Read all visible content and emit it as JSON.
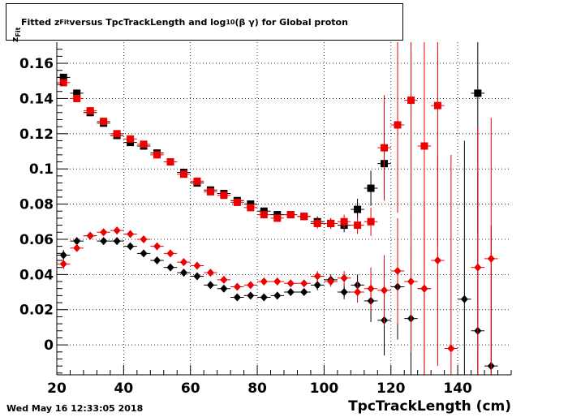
{
  "title": {
    "prefix": "Fitted  z",
    "sub": "Fit",
    "middle": "  versus TpcTrackLength and log",
    "log_sub": "10",
    "suffix": " (β γ) for Global proton"
  },
  "ylabel": {
    "main": "z",
    "sub": "Fit"
  },
  "datestamp": "Wed May 16 12:33:05 2018",
  "chart_data": {
    "type": "scatter",
    "title": "Fitted z_Fit versus TpcTrackLength and log10 (β γ) for Global proton",
    "xlabel": "TpcTrackLength (cm)",
    "ylabel": "z_Fit",
    "xlim": [
      20,
      156
    ],
    "ylim": [
      -0.017,
      0.172
    ],
    "xticks": [
      20,
      40,
      60,
      80,
      100,
      120,
      140
    ],
    "yticks": [
      0,
      0.02,
      0.04,
      0.06,
      0.08,
      0.1,
      0.12,
      0.14,
      0.16
    ],
    "ytick_labels": [
      "0",
      "0.02",
      "0.04",
      "0.06",
      "0.08",
      "0.1",
      "0.12",
      "0.14",
      "0.16"
    ],
    "grid": true,
    "series": [
      {
        "marker": "square",
        "color": "#000000",
        "x": [
          22,
          26,
          30,
          34,
          38,
          42,
          46,
          50,
          54,
          58,
          62,
          66,
          70,
          74,
          78,
          82,
          86,
          90,
          94,
          98,
          102,
          106,
          110,
          114,
          118,
          146
        ],
        "y": [
          0.152,
          0.143,
          0.132,
          0.126,
          0.119,
          0.115,
          0.113,
          0.109,
          0.104,
          0.098,
          0.092,
          0.088,
          0.086,
          0.082,
          0.08,
          0.076,
          0.074,
          0.074,
          0.073,
          0.07,
          0.069,
          0.068,
          0.077,
          0.089,
          0.103,
          0.143
        ],
        "err": [
          0.002,
          0.002,
          0.002,
          0.002,
          0.002,
          0.002,
          0.002,
          0.002,
          0.002,
          0.002,
          0.002,
          0.002,
          0.002,
          0.002,
          0.002,
          0.002,
          0.002,
          0.002,
          0.002,
          0.003,
          0.003,
          0.004,
          0.006,
          0.01,
          0.02,
          0.08
        ]
      },
      {
        "marker": "square",
        "color": "#ee0000",
        "x": [
          22,
          26,
          30,
          34,
          38,
          42,
          46,
          50,
          54,
          58,
          62,
          66,
          70,
          74,
          78,
          82,
          86,
          90,
          94,
          98,
          102,
          106,
          110,
          114,
          118,
          122,
          126,
          130,
          134
        ],
        "y": [
          0.149,
          0.14,
          0.133,
          0.127,
          0.12,
          0.117,
          0.114,
          0.108,
          0.104,
          0.097,
          0.093,
          0.087,
          0.085,
          0.081,
          0.078,
          0.074,
          0.072,
          0.074,
          0.073,
          0.069,
          0.069,
          0.07,
          0.068,
          0.07,
          0.112,
          0.125,
          0.139,
          0.113,
          0.136
        ],
        "err": [
          0.002,
          0.002,
          0.002,
          0.002,
          0.002,
          0.002,
          0.002,
          0.002,
          0.002,
          0.002,
          0.002,
          0.002,
          0.002,
          0.002,
          0.002,
          0.002,
          0.002,
          0.002,
          0.002,
          0.003,
          0.003,
          0.004,
          0.005,
          0.008,
          0.03,
          0.05,
          0.07,
          0.07,
          0.08
        ]
      },
      {
        "marker": "diamond",
        "color": "#000000",
        "x": [
          22,
          26,
          30,
          34,
          38,
          42,
          46,
          50,
          54,
          58,
          62,
          66,
          70,
          74,
          78,
          82,
          86,
          90,
          94,
          98,
          102,
          106,
          110,
          114,
          118,
          122,
          126,
          130,
          142,
          146,
          150
        ],
        "y": [
          0.051,
          0.059,
          0.062,
          0.059,
          0.059,
          0.056,
          0.052,
          0.048,
          0.044,
          0.041,
          0.039,
          0.034,
          0.032,
          0.027,
          0.028,
          0.027,
          0.028,
          0.03,
          0.03,
          0.034,
          0.037,
          0.03,
          0.034,
          0.025,
          0.014,
          0.033,
          0.015,
          0.032,
          0.026,
          0.008,
          -0.012
        ],
        "err": [
          0.003,
          0.002,
          0.002,
          0.002,
          0.002,
          0.002,
          0.002,
          0.002,
          0.002,
          0.002,
          0.002,
          0.002,
          0.002,
          0.002,
          0.002,
          0.002,
          0.002,
          0.002,
          0.002,
          0.003,
          0.003,
          0.004,
          0.006,
          0.012,
          0.02,
          0.03,
          0.04,
          0.05,
          0.09,
          0.09,
          0.08
        ]
      },
      {
        "marker": "diamond",
        "color": "#ee0000",
        "x": [
          22,
          26,
          30,
          34,
          38,
          42,
          46,
          50,
          54,
          58,
          62,
          66,
          70,
          74,
          78,
          82,
          86,
          90,
          94,
          98,
          102,
          106,
          110,
          114,
          118,
          122,
          126,
          130,
          134,
          138,
          146,
          150
        ],
        "y": [
          0.046,
          0.055,
          0.062,
          0.064,
          0.065,
          0.063,
          0.06,
          0.056,
          0.052,
          0.047,
          0.045,
          0.041,
          0.037,
          0.033,
          0.034,
          0.036,
          0.036,
          0.035,
          0.035,
          0.039,
          0.036,
          0.038,
          0.03,
          0.032,
          0.031,
          0.042,
          0.036,
          0.032,
          0.048,
          -0.002,
          0.044,
          0.049
        ],
        "err": [
          0.003,
          0.002,
          0.002,
          0.002,
          0.002,
          0.002,
          0.002,
          0.002,
          0.002,
          0.002,
          0.002,
          0.002,
          0.002,
          0.002,
          0.002,
          0.002,
          0.002,
          0.002,
          0.002,
          0.003,
          0.003,
          0.004,
          0.006,
          0.012,
          0.02,
          0.03,
          0.04,
          0.05,
          0.06,
          0.11,
          0.08,
          0.08
        ]
      }
    ]
  }
}
